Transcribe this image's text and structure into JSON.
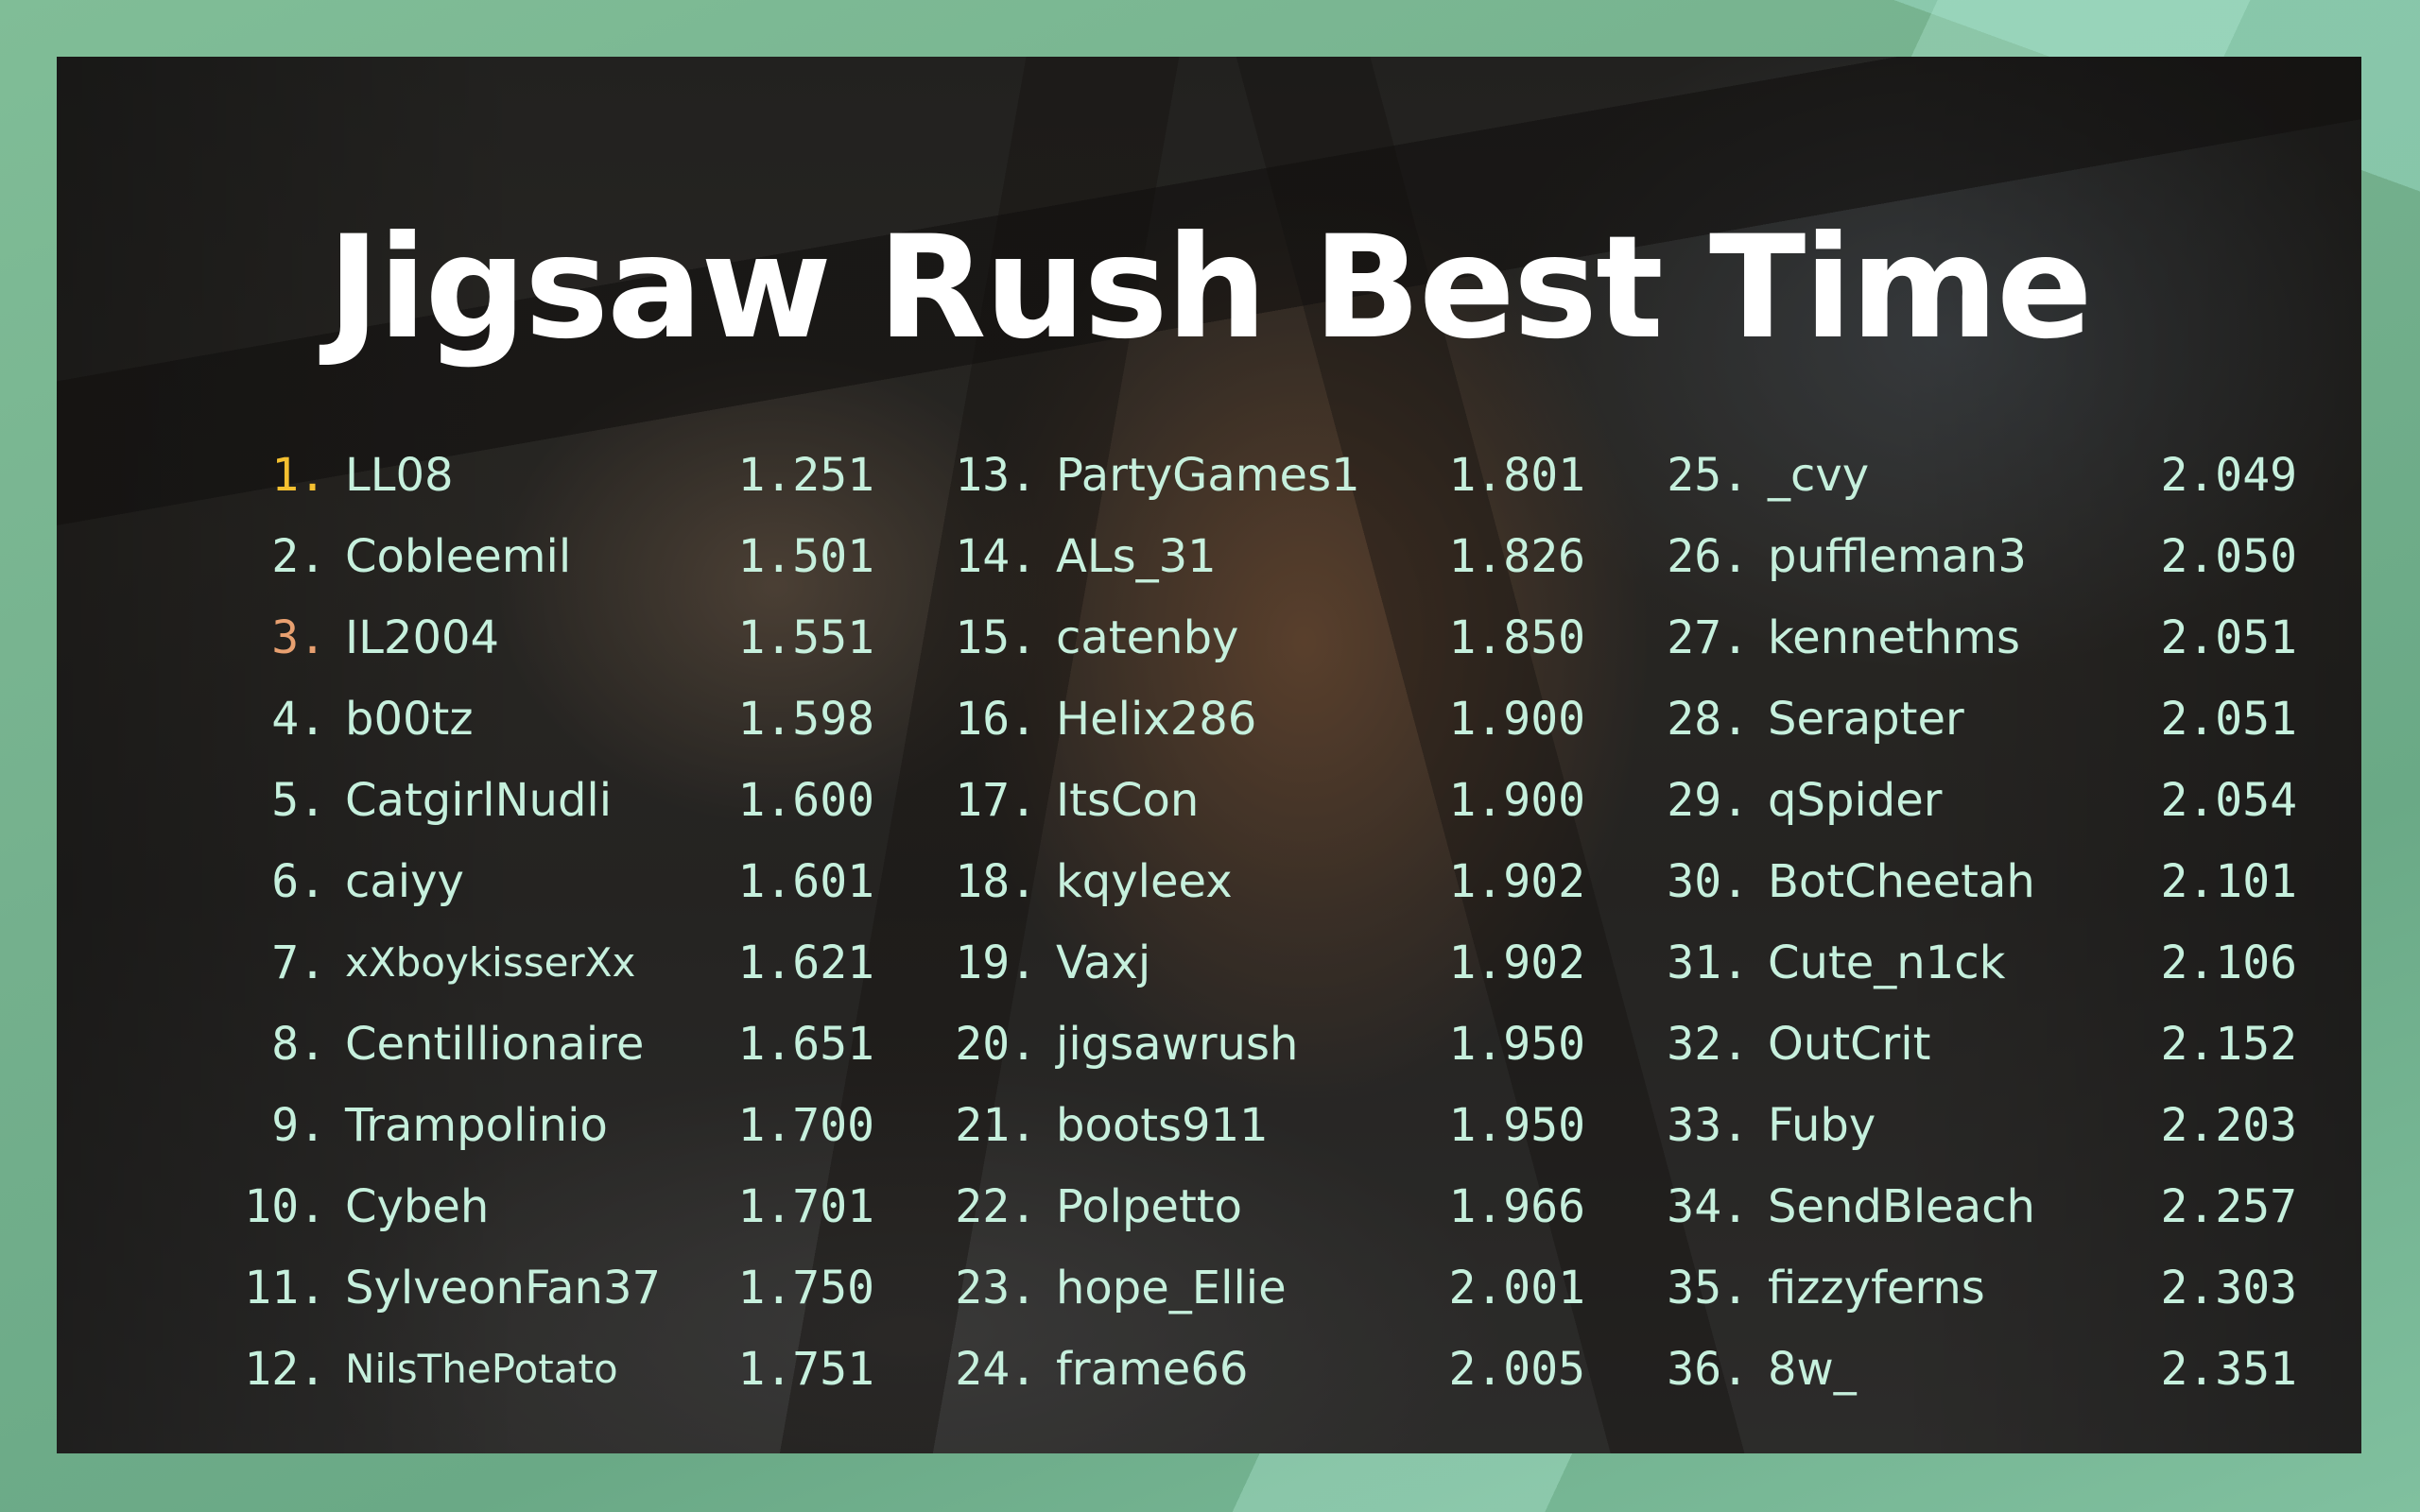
{
  "title": "Jigsaw Rush Best Time",
  "colors": {
    "text": "#c6f0dd",
    "gold": "#f4c030",
    "bronze": "#e8a070",
    "title": "#ffffff",
    "frame": "#74b08d"
  },
  "columns": [
    {
      "entries": [
        {
          "rank": "1.",
          "name": "LL08",
          "time": "1.251",
          "medal": "gold"
        },
        {
          "rank": "2.",
          "name": "Cobleemil",
          "time": "1.501"
        },
        {
          "rank": "3.",
          "name": "IL2004",
          "time": "1.551",
          "medal": "bronze"
        },
        {
          "rank": "4.",
          "name": "b00tz",
          "time": "1.598"
        },
        {
          "rank": "5.",
          "name": "CatgirlNudli",
          "time": "1.600"
        },
        {
          "rank": "6.",
          "name": "caiyy",
          "time": "1.601"
        },
        {
          "rank": "7.",
          "name": "xXboykisserXx",
          "time": "1.621",
          "small": true
        },
        {
          "rank": "8.",
          "name": "Centillionaire",
          "time": "1.651"
        },
        {
          "rank": "9.",
          "name": "Trampolinio",
          "time": "1.700"
        },
        {
          "rank": "10.",
          "name": "Cybeh",
          "time": "1.701"
        },
        {
          "rank": "11.",
          "name": "SylveonFan37",
          "time": "1.750"
        },
        {
          "rank": "12.",
          "name": "NilsThePotato",
          "time": "1.751",
          "small": true
        }
      ]
    },
    {
      "entries": [
        {
          "rank": "13.",
          "name": "PartyGames1",
          "time": "1.801"
        },
        {
          "rank": "14.",
          "name": "ALs_31",
          "time": "1.826"
        },
        {
          "rank": "15.",
          "name": "catenby",
          "time": "1.850"
        },
        {
          "rank": "16.",
          "name": "Helix286",
          "time": "1.900"
        },
        {
          "rank": "17.",
          "name": "ItsCon",
          "time": "1.900"
        },
        {
          "rank": "18.",
          "name": "kqyleex",
          "time": "1.902"
        },
        {
          "rank": "19.",
          "name": "Vaxj",
          "time": "1.902"
        },
        {
          "rank": "20.",
          "name": "jigsawrush",
          "time": "1.950"
        },
        {
          "rank": "21.",
          "name": "boots911",
          "time": "1.950"
        },
        {
          "rank": "22.",
          "name": "Polpetto",
          "time": "1.966"
        },
        {
          "rank": "23.",
          "name": "hope_Ellie",
          "time": "2.001"
        },
        {
          "rank": "24.",
          "name": "frame66",
          "time": "2.005"
        }
      ]
    },
    {
      "entries": [
        {
          "rank": "25.",
          "name": "_cvy",
          "time": "2.049"
        },
        {
          "rank": "26.",
          "name": "puffleman3",
          "time": "2.050"
        },
        {
          "rank": "27.",
          "name": "kennethms",
          "time": "2.051"
        },
        {
          "rank": "28.",
          "name": "Serapter",
          "time": "2.051"
        },
        {
          "rank": "29.",
          "name": "qSpider",
          "time": "2.054"
        },
        {
          "rank": "30.",
          "name": "BotCheetah",
          "time": "2.101"
        },
        {
          "rank": "31.",
          "name": "Cute_n1ck",
          "time": "2.106"
        },
        {
          "rank": "32.",
          "name": "OutCrit",
          "time": "2.152"
        },
        {
          "rank": "33.",
          "name": "Fuby",
          "time": "2.203"
        },
        {
          "rank": "34.",
          "name": "SendBleach",
          "time": "2.257"
        },
        {
          "rank": "35.",
          "name": "fizzyferns",
          "time": "2.303"
        },
        {
          "rank": "36.",
          "name": "8w_",
          "time": "2.351"
        }
      ]
    }
  ]
}
